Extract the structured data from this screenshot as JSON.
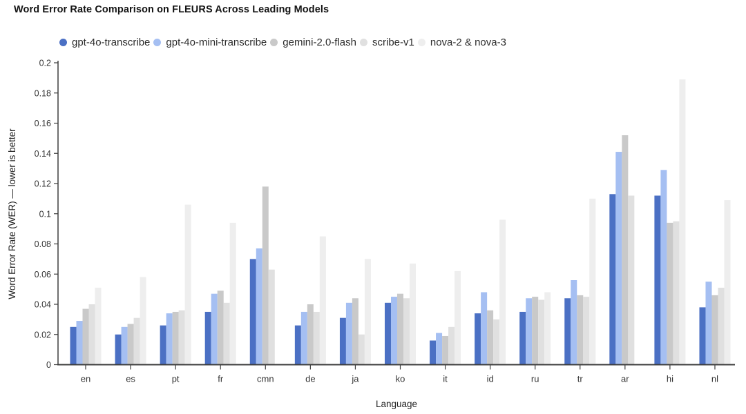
{
  "page": {
    "background": "#ffffff"
  },
  "chart_data": {
    "type": "bar",
    "title": "Word Error Rate Comparison on FLEURS Across Leading Models",
    "xlabel": "Language",
    "ylabel": "Word Error Rate (WER) — lower is better",
    "ylim": [
      0,
      0.2
    ],
    "ytick_step": 0.02,
    "grid": false,
    "legend_position": "top",
    "axis_color": "#3d3d3d",
    "tick_label_color": "#333333",
    "categories": [
      "en",
      "es",
      "pt",
      "fr",
      "cmn",
      "de",
      "ja",
      "ko",
      "it",
      "id",
      "ru",
      "tr",
      "ar",
      "hi",
      "nl"
    ],
    "series": [
      {
        "name": "gpt-4o-transcribe",
        "color": "#4b70c4",
        "values": [
          0.025,
          0.02,
          0.026,
          0.035,
          0.07,
          0.026,
          0.031,
          0.041,
          0.016,
          0.034,
          0.035,
          0.044,
          0.113,
          0.112,
          0.038
        ]
      },
      {
        "name": "gpt-4o-mini-transcribe",
        "color": "#a5bff2",
        "values": [
          0.029,
          0.025,
          0.034,
          0.047,
          0.077,
          0.035,
          0.041,
          0.045,
          0.021,
          0.048,
          0.044,
          0.056,
          0.141,
          0.129,
          0.055
        ]
      },
      {
        "name": "gemini-2.0-flash",
        "color": "#c9c9c9",
        "values": [
          0.037,
          0.027,
          0.035,
          0.049,
          0.118,
          0.04,
          0.044,
          0.047,
          0.019,
          0.036,
          0.045,
          0.046,
          0.152,
          0.094,
          0.046
        ]
      },
      {
        "name": "scribe-v1",
        "color": "#e0e0e0",
        "values": [
          0.04,
          0.031,
          0.036,
          0.041,
          0.063,
          0.035,
          0.02,
          0.044,
          0.025,
          0.03,
          0.043,
          0.045,
          0.112,
          0.095,
          0.051
        ]
      },
      {
        "name": "nova-2 & nova-3",
        "color": "#eeeeee",
        "values": [
          0.051,
          0.058,
          0.106,
          0.094,
          null,
          0.085,
          0.07,
          0.067,
          0.062,
          0.096,
          0.048,
          0.11,
          null,
          0.189,
          0.109
        ]
      }
    ]
  }
}
